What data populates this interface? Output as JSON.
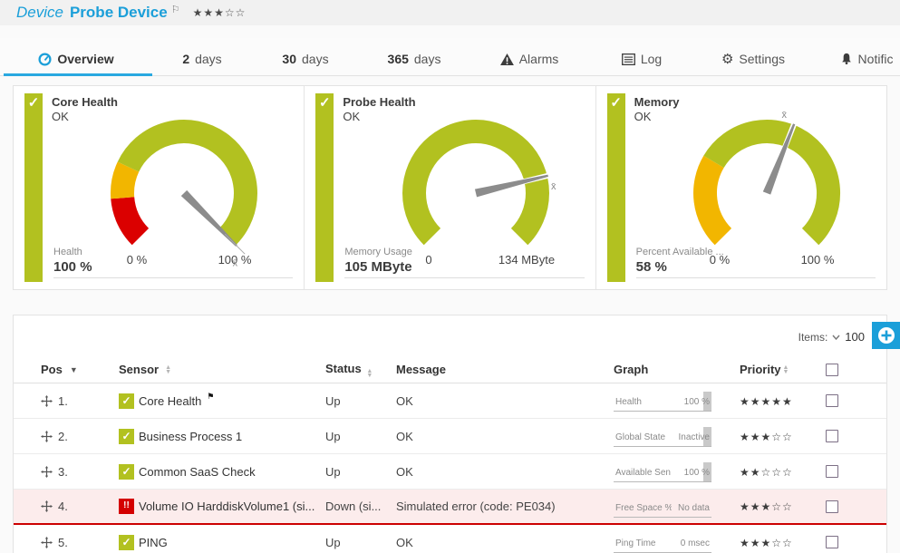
{
  "header": {
    "kind": "Device",
    "title": "Probe Device",
    "rating": "★★★☆☆"
  },
  "tabs": [
    {
      "label": "Overview",
      "icon": "gauge-icon",
      "active": true
    },
    {
      "num": "2",
      "label": "days"
    },
    {
      "num": "30",
      "label": "days"
    },
    {
      "num": "365",
      "label": "days"
    },
    {
      "label": "Alarms",
      "icon": "warning-icon"
    },
    {
      "label": "Log",
      "icon": "log-icon"
    },
    {
      "label": "Settings",
      "icon": "gear-icon"
    },
    {
      "label": "Notific",
      "icon": "bell-icon"
    }
  ],
  "chart_data": [
    {
      "type": "gauge",
      "title": "Core Health",
      "status": "OK",
      "channel": "Health",
      "value_label": "100 %",
      "value_fraction": 1.0,
      "min_label": "0 %",
      "max_label": "100 %",
      "avg_fraction": 1.0,
      "notch": false,
      "tip_line": true,
      "segments": [
        {
          "from": 0.0,
          "to": 0.15,
          "color": "#db0000"
        },
        {
          "from": 0.15,
          "to": 0.26,
          "color": "#f2b600"
        },
        {
          "from": 0.26,
          "to": 1.0,
          "color": "#b2c120"
        }
      ]
    },
    {
      "type": "gauge",
      "title": "Probe Health",
      "status": "OK",
      "channel": "Memory Usage",
      "value_label": "105 MByte",
      "value_fraction": 0.783,
      "min_label": "0",
      "max_label": "134 MByte",
      "avg_fraction": 0.783,
      "notch": true,
      "tip_line": false,
      "segments": [
        {
          "from": 0.0,
          "to": 1.0,
          "color": "#b2c120"
        }
      ]
    },
    {
      "type": "gauge",
      "title": "Memory",
      "status": "OK",
      "channel": "Percent Available ...",
      "value_label": "58 %",
      "value_fraction": 0.58,
      "min_label": "0 %",
      "max_label": "100 %",
      "avg_fraction": 0.58,
      "notch": true,
      "tip_line": false,
      "segments": [
        {
          "from": 0.0,
          "to": 0.28,
          "color": "#f2b600"
        },
        {
          "from": 0.28,
          "to": 1.0,
          "color": "#b2c120"
        }
      ]
    }
  ],
  "table": {
    "items_label": "Items:",
    "items_value": "100",
    "columns": {
      "pos": "Pos",
      "sensor": "Sensor",
      "status": "Status",
      "message": "Message",
      "graph": "Graph",
      "priority": "Priority"
    },
    "rows": [
      {
        "pos": "1.",
        "sensor": "Core Health",
        "flag": true,
        "status_type": "up",
        "status": "Up",
        "message": "OK",
        "graph": {
          "label": "Health",
          "value": "100 %",
          "bar": true
        },
        "stars": "★★★★★"
      },
      {
        "pos": "2.",
        "sensor": "Business Process 1",
        "flag": false,
        "status_type": "up",
        "status": "Up",
        "message": "OK",
        "graph": {
          "label": "Global State",
          "value": "Inactive",
          "bar": true
        },
        "stars": "★★★☆☆"
      },
      {
        "pos": "3.",
        "sensor": "Common SaaS Check",
        "flag": false,
        "status_type": "up",
        "status": "Up",
        "message": "OK",
        "graph": {
          "label": "Available Sen",
          "value": "100 %",
          "bar": true
        },
        "stars": "★★☆☆☆"
      },
      {
        "pos": "4.",
        "sensor": "Volume IO HarddiskVolume1 (si...",
        "flag": false,
        "status_type": "down",
        "status": "Down (si...",
        "message": "Simulated error (code: PE034)",
        "graph": {
          "label": "Free Space %",
          "value": "No data",
          "bar": false
        },
        "stars": "★★★☆☆"
      },
      {
        "pos": "5.",
        "sensor": "PING",
        "flag": false,
        "status_type": "up",
        "status": "Up",
        "message": "OK",
        "graph": {
          "label": "Ping Time",
          "value": "0 msec",
          "bar": false
        },
        "stars": "★★★☆☆"
      }
    ]
  },
  "colors": {
    "accent": "#1b9fd9",
    "green": "#b2c120",
    "yellow": "#f2b600",
    "red": "#db0000",
    "row_error_bg": "#fcecec",
    "row_error_border": "#cc0001"
  }
}
